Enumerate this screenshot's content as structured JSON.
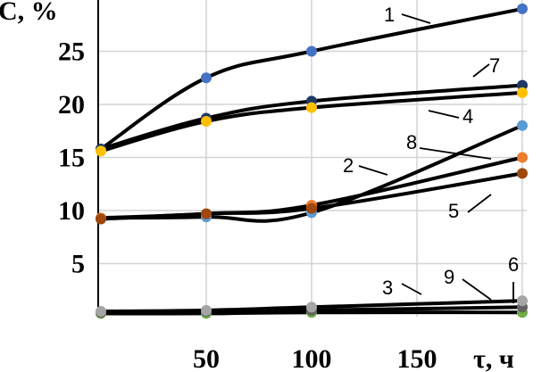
{
  "chart_data": {
    "type": "line",
    "ylabel": "C, %",
    "xlabel": "τ, ч",
    "xlim": [
      0,
      200
    ],
    "ylim": [
      0,
      30
    ],
    "x_ticks": [
      "50",
      "100",
      "150"
    ],
    "y_ticks": [
      "5",
      "10",
      "15",
      "20",
      "25"
    ],
    "grid": true,
    "legend": "none",
    "x": [
      0,
      50,
      100,
      200
    ],
    "series": [
      {
        "name": "1",
        "values": [
          15.8,
          22.5,
          25.0,
          29.0
        ],
        "color": "#4472c4"
      },
      {
        "name": "7",
        "values": [
          15.8,
          18.7,
          20.3,
          21.8
        ],
        "color": "#1f3864"
      },
      {
        "name": "4",
        "values": [
          15.6,
          18.4,
          19.7,
          21.1
        ],
        "color": "#ffc000"
      },
      {
        "name": "8",
        "values": [
          9.3,
          9.4,
          9.8,
          18.0
        ],
        "color": "#5b9bd5"
      },
      {
        "name": "2",
        "values": [
          9.3,
          9.7,
          10.5,
          15.0
        ],
        "color": "#ed7d31"
      },
      {
        "name": "5",
        "values": [
          9.2,
          9.7,
          10.2,
          13.5
        ],
        "color": "#9e480e"
      },
      {
        "name": "3",
        "values": [
          0.3,
          0.3,
          0.4,
          0.4
        ],
        "color": "#70ad47"
      },
      {
        "name": "6",
        "values": [
          0.4,
          0.5,
          0.6,
          0.9
        ],
        "color": "#636363"
      },
      {
        "name": "9",
        "values": [
          0.5,
          0.6,
          0.9,
          1.5
        ],
        "color": "#a5a5a5"
      }
    ],
    "callouts": [
      "1",
      "7",
      "4",
      "8",
      "2",
      "5",
      "3",
      "9",
      "6"
    ]
  }
}
